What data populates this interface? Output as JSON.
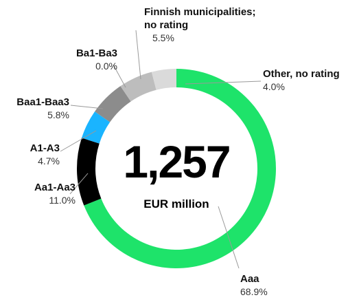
{
  "chart_data": {
    "type": "donut",
    "categories": [
      "Aaa",
      "Aa1-Aa3",
      "A1-A3",
      "Baa1-Baa3",
      "Ba1-Ba3",
      "Finnish municipalities;\nno rating",
      "Other, no rating"
    ],
    "values": [
      68.9,
      11.0,
      4.7,
      5.8,
      0.0,
      5.5,
      4.0
    ],
    "value_labels": [
      "68.9%",
      "11.0%",
      "4.7%",
      "5.8%",
      "0.0%",
      "5.5%",
      "4.0%"
    ],
    "colors": [
      "#1ee36a",
      "#000000",
      "#1ab4ff",
      "#8c8c8c",
      "#6a6a6a",
      "#bdbdbd",
      "#dadada"
    ],
    "total_label": "1,257",
    "unit": "EUR million"
  }
}
